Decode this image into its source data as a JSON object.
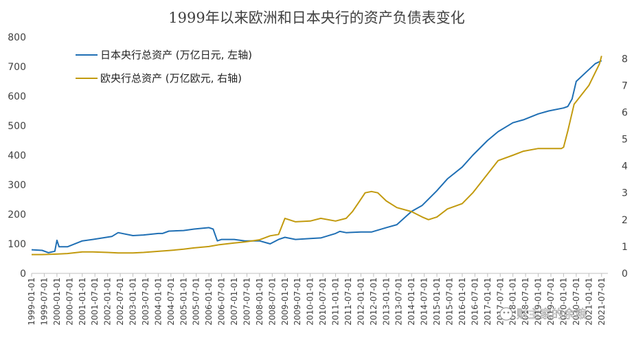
{
  "chart_data": {
    "type": "line",
    "title": "1999年以来欧洲和日本央行的资产负债表变化",
    "watermark": "财主家的余粮",
    "grid": false,
    "legend_position": "top-left",
    "y_left": {
      "ticks": [
        "0",
        "100",
        "200",
        "300",
        "400",
        "500",
        "600",
        "700",
        "800"
      ],
      "lim": [
        0,
        800
      ]
    },
    "y_right": {
      "ticks": [
        "0",
        "1",
        "2",
        "3",
        "4",
        "5",
        "6",
        "7",
        "8"
      ],
      "lim": [
        0,
        8.8
      ]
    },
    "x_ticks": [
      "1999-01-01",
      "1999-07-01",
      "2000-01-01",
      "2000-07-01",
      "2001-01-01",
      "2001-07-01",
      "2002-01-01",
      "2002-07-01",
      "2003-01-01",
      "2003-07-01",
      "2004-01-01",
      "2004-07-01",
      "2005-01-01",
      "2005-07-01",
      "2006-01-01",
      "2006-07-01",
      "2007-01-01",
      "2007-07-01",
      "2008-01-01",
      "2008-07-01",
      "2009-01-01",
      "2009-07-01",
      "2010-01-01",
      "2010-07-01",
      "2011-01-01",
      "2011-07-01",
      "2012-01-01",
      "2012-07-01",
      "2013-01-01",
      "2013-07-01",
      "2014-01-01",
      "2014-07-01",
      "2015-01-01",
      "2015-07-01",
      "2016-01-01",
      "2016-07-01",
      "2017-01-01",
      "2017-07-01",
      "2018-01-01",
      "2018-07-01",
      "2019-01-01",
      "2019-07-01",
      "2020-01-01",
      "2020-07-01",
      "2021-01-01",
      "2021-07-01"
    ],
    "series": [
      {
        "name": "日本央行总资产 (万亿日元, 左轴)",
        "axis": "left",
        "color": "#1f6fb4",
        "x": [
          "1999-01-01",
          "1999-06-01",
          "1999-09-01",
          "1999-12-01",
          "2000-01-01",
          "2000-02-01",
          "2000-06-01",
          "2001-01-01",
          "2001-06-01",
          "2002-03-01",
          "2002-06-01",
          "2003-01-01",
          "2003-06-01",
          "2004-01-01",
          "2004-03-01",
          "2004-06-01",
          "2005-01-01",
          "2005-06-01",
          "2006-01-01",
          "2006-03-01",
          "2006-05-01",
          "2006-07-01",
          "2007-01-01",
          "2007-06-01",
          "2008-01-01",
          "2008-06-01",
          "2008-10-01",
          "2009-01-01",
          "2009-06-01",
          "2010-01-01",
          "2010-06-01",
          "2011-01-01",
          "2011-03-01",
          "2011-06-01",
          "2012-01-01",
          "2012-06-01",
          "2013-01-01",
          "2013-06-01",
          "2014-01-01",
          "2014-06-01",
          "2015-01-01",
          "2015-06-01",
          "2016-01-01",
          "2016-06-01",
          "2017-01-01",
          "2017-06-01",
          "2018-01-01",
          "2018-06-01",
          "2019-01-01",
          "2019-06-01",
          "2020-01-01",
          "2020-03-01",
          "2020-05-01",
          "2020-07-01",
          "2021-01-01",
          "2021-04-01",
          "2021-07-01"
        ],
        "y": [
          80,
          78,
          70,
          75,
          112,
          90,
          90,
          110,
          115,
          125,
          138,
          128,
          130,
          135,
          135,
          143,
          145,
          150,
          155,
          150,
          110,
          115,
          115,
          110,
          110,
          100,
          115,
          122,
          115,
          118,
          120,
          135,
          142,
          138,
          140,
          140,
          155,
          165,
          210,
          230,
          280,
          320,
          360,
          400,
          450,
          480,
          510,
          520,
          540,
          550,
          560,
          565,
          590,
          650,
          690,
          710,
          720
        ]
      },
      {
        "name": "欧央行总资产 (万亿欧元, 右轴)",
        "axis": "right",
        "color": "#c29a0e",
        "x": [
          "1999-01-01",
          "1999-06-01",
          "2000-01-01",
          "2000-06-01",
          "2001-01-01",
          "2001-06-01",
          "2002-01-01",
          "2002-06-01",
          "2003-01-01",
          "2003-06-01",
          "2004-01-01",
          "2004-06-01",
          "2005-01-01",
          "2005-06-01",
          "2006-01-01",
          "2006-06-01",
          "2007-01-01",
          "2007-06-01",
          "2008-01-01",
          "2008-06-01",
          "2008-10-01",
          "2009-01-01",
          "2009-06-01",
          "2010-01-01",
          "2010-06-01",
          "2011-01-01",
          "2011-06-01",
          "2011-09-01",
          "2011-12-01",
          "2012-03-01",
          "2012-06-01",
          "2012-09-01",
          "2013-01-01",
          "2013-06-01",
          "2014-01-01",
          "2014-06-01",
          "2014-09-01",
          "2015-01-01",
          "2015-06-01",
          "2016-01-01",
          "2016-06-01",
          "2017-01-01",
          "2017-06-01",
          "2018-01-01",
          "2018-06-01",
          "2019-01-01",
          "2019-06-01",
          "2019-12-01",
          "2020-01-01",
          "2020-03-01",
          "2020-06-01",
          "2021-01-01",
          "2021-06-01",
          "2021-07-01"
        ],
        "y": [
          0.7,
          0.7,
          0.72,
          0.74,
          0.8,
          0.8,
          0.78,
          0.76,
          0.76,
          0.78,
          0.82,
          0.85,
          0.9,
          0.95,
          1.0,
          1.07,
          1.13,
          1.17,
          1.25,
          1.4,
          1.45,
          2.05,
          1.92,
          1.95,
          2.05,
          1.95,
          2.05,
          2.3,
          2.65,
          3.0,
          3.05,
          3.0,
          2.7,
          2.45,
          2.3,
          2.1,
          2.0,
          2.1,
          2.4,
          2.6,
          3.0,
          3.7,
          4.2,
          4.4,
          4.55,
          4.65,
          4.65,
          4.65,
          4.7,
          5.3,
          6.3,
          7.0,
          7.8,
          8.1
        ]
      }
    ]
  }
}
